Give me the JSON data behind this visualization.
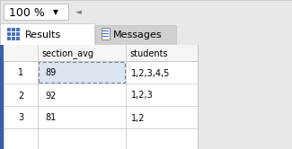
{
  "title_bar_text": "100 %",
  "tab1_text": "Results",
  "tab2_text": "Messages",
  "col_headers": [
    "",
    "section_avg",
    "students"
  ],
  "rows": [
    [
      "1",
      "89",
      "1,2,3,4,5"
    ],
    [
      "2",
      "92",
      "1,2,3"
    ],
    [
      "3",
      "81",
      "1,2"
    ]
  ],
  "bg_color": "#e8e8e8",
  "table_bg": "#ffffff",
  "header_bg": "#f5f5f5",
  "tab_active_bg": "#ffffff",
  "tab_inactive_bg": "#d0d0d0",
  "border_color": "#c0c0c0",
  "text_color": "#000000",
  "selected_cell_bg": "#dce6f1",
  "selected_cell_border": "#8080a0",
  "left_bar_color": "#3a5fa8",
  "font_size": 7.5
}
